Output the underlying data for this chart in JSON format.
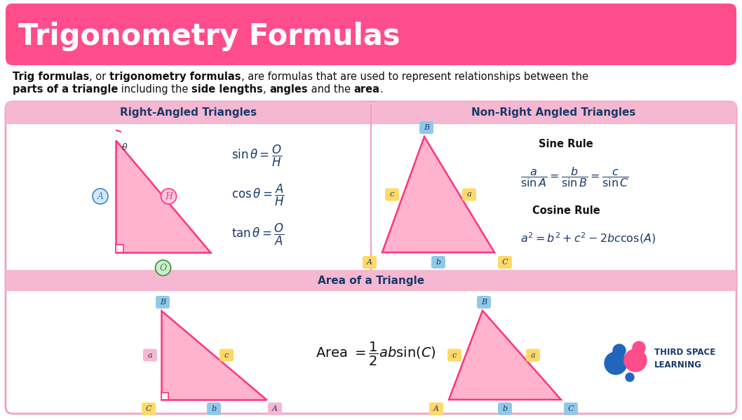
{
  "title": "Trigonometry Formulas",
  "title_bg": "#FF4D8B",
  "title_color": "#FFFFFF",
  "bg_color": "#FFFFFF",
  "outer_bg": "#F5F5F5",
  "border_color": "#F0A0C0",
  "section_header_bg": "#F5B8D0",
  "section_header_color": "#1a3a6b",
  "triangle_fill": "#FFB3CC",
  "triangle_edge": "#FF3380",
  "label_blue_bg": "#90C8E8",
  "label_yellow_bg": "#FFD966",
  "label_pink_bg": "#F5B8D0",
  "label_green_bg": "#90EE90",
  "right_header": "Right-Angled Triangles",
  "nonright_header": "Non-Right Angled Triangles",
  "area_header": "Area of a Triangle",
  "formula_color": "#1a3a6b"
}
